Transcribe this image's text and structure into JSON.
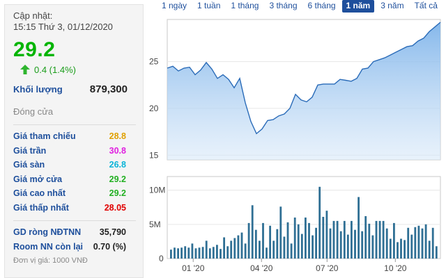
{
  "info": {
    "update_label": "Cập nhật:",
    "update_time": "15:15 Thứ 3, 01/12/2020",
    "price": "29.2",
    "change": "0.4 (1.4%)",
    "volume_label": "Khối lượng",
    "volume_value": "879,300",
    "closed_label": "Đóng cửa",
    "prices": [
      {
        "label": "Giá tham chiếu",
        "value": "28.8",
        "color": "#e0a000"
      },
      {
        "label": "Giá trần",
        "value": "30.8",
        "color": "#e020e0"
      },
      {
        "label": "Giá sàn",
        "value": "26.8",
        "color": "#0ab4d8"
      },
      {
        "label": "Giá mở cửa",
        "value": "29.2",
        "color": "#22b022"
      },
      {
        "label": "Giá cao nhất",
        "value": "29.2",
        "color": "#22b022"
      },
      {
        "label": "Giá thấp nhất",
        "value": "28.05",
        "color": "#e00000"
      }
    ],
    "foreign_net_label": "GD ròng NĐTNN",
    "foreign_net_value": "35,790",
    "foreign_room_label": "Room NN còn lại",
    "foreign_room_value": "0.70 (%)",
    "unit_note": "Đơn vị giá: 1000 VNĐ",
    "price_color": "#00b400"
  },
  "range_tabs": [
    {
      "label": "1 ngày",
      "active": false
    },
    {
      "label": "1 tuần",
      "active": false
    },
    {
      "label": "1 tháng",
      "active": false
    },
    {
      "label": "3 tháng",
      "active": false
    },
    {
      "label": "6 tháng",
      "active": false
    },
    {
      "label": "1 năm",
      "active": true
    },
    {
      "label": "3 năm",
      "active": false
    },
    {
      "label": "Tất cả",
      "active": false
    }
  ],
  "chart_data": [
    {
      "type": "area",
      "title": "",
      "ylim": [
        14.5,
        29.5
      ],
      "y_ticks": [
        "15",
        "20",
        "25"
      ],
      "y_tick_values": [
        15,
        20,
        25
      ],
      "x_ticks": [
        "01 '20",
        "04 '20",
        "07 '20",
        "10 '20"
      ],
      "color": "#5b9bdc",
      "values": [
        24.3,
        24.5,
        24.0,
        24.3,
        24.4,
        23.6,
        24.1,
        24.9,
        24.2,
        23.2,
        23.6,
        23.1,
        22.2,
        23.2,
        20.6,
        18.6,
        17.3,
        17.8,
        18.7,
        18.8,
        19.2,
        19.4,
        20.0,
        21.5,
        20.9,
        20.7,
        21.2,
        22.5,
        22.6,
        22.6,
        22.6,
        23.1,
        23.0,
        22.9,
        23.2,
        24.2,
        24.3,
        25.0,
        25.2,
        25.4,
        25.7,
        26.0,
        26.3,
        26.6,
        26.7,
        27.2,
        27.5,
        28.2,
        28.7,
        29.2
      ]
    },
    {
      "type": "bar",
      "title": "",
      "ylim": [
        0,
        12
      ],
      "y_ticks": [
        "10M",
        "5M",
        "0"
      ],
      "y_tick_values": [
        10,
        5,
        0
      ],
      "unit": "M",
      "color": "#2f6f94",
      "values": [
        1.3,
        1.6,
        1.5,
        1.6,
        1.8,
        1.6,
        2.2,
        1.5,
        1.6,
        1.7,
        2.6,
        1.5,
        1.7,
        2.0,
        1.4,
        3.1,
        1.8,
        2.6,
        3.0,
        3.4,
        3.8,
        2.2,
        5.2,
        7.8,
        4.2,
        2.6,
        5.2,
        1.6,
        4.8,
        2.6,
        4.3,
        7.6,
        3.2,
        5.3,
        2.2,
        6.0,
        5.0,
        3.6,
        6.0,
        5.2,
        3.4,
        4.5,
        10.5,
        6.1,
        7.0,
        4.4,
        5.5,
        5.5,
        4.0,
        5.5,
        3.5,
        5.5,
        4.2,
        9.0,
        4.0,
        6.2,
        5.1,
        3.4,
        5.5,
        5.5,
        5.5,
        4.4,
        2.9,
        5.2,
        2.4,
        2.9,
        2.7,
        4.5,
        3.5,
        4.6,
        4.8,
        4.4,
        5.0,
        2.6,
        4.5,
        1.8
      ]
    }
  ]
}
